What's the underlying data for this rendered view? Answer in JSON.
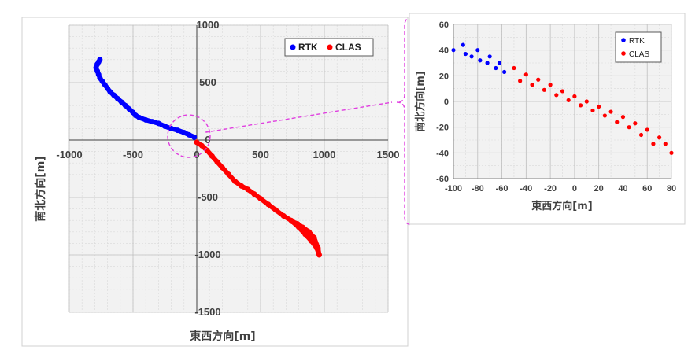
{
  "chart_data": [
    {
      "type": "scatter",
      "title": "",
      "xlabel": "東西方向[m]",
      "ylabel": "南北方向[m]",
      "xlim": [
        -1000,
        1500
      ],
      "ylim": [
        -1500,
        1000
      ],
      "xticks": [
        "-1000",
        "-500",
        "0",
        "500",
        "1000",
        "1500"
      ],
      "yticks": [
        "1000",
        "500",
        "0",
        "-500",
        "-1000",
        "-1500"
      ],
      "grid": true,
      "legend": "top-right",
      "series": [
        {
          "name": "RTK",
          "color": "#0000ff",
          "x": [
            -770,
            -760,
            -780,
            -790,
            -780,
            -770,
            -760,
            -740,
            -720,
            -700,
            -680,
            -650,
            -620,
            -590,
            -560,
            -530,
            -500,
            -480,
            -450,
            -400,
            -350,
            -300,
            -250,
            -200,
            -150,
            -100,
            -60,
            -20
          ],
          "y": [
            680,
            700,
            660,
            630,
            600,
            570,
            540,
            510,
            480,
            450,
            420,
            390,
            360,
            330,
            300,
            270,
            240,
            215,
            195,
            175,
            160,
            145,
            120,
            100,
            85,
            65,
            45,
            25
          ]
        },
        {
          "name": "CLAS",
          "color": "#ff0000",
          "x": [
            0,
            40,
            80,
            120,
            160,
            200,
            250,
            300,
            350,
            400,
            450,
            500,
            560,
            620,
            680,
            740,
            800,
            850,
            900,
            940,
            960,
            950,
            920,
            880,
            830,
            790,
            750,
            800,
            850,
            900,
            950
          ],
          "y": [
            -20,
            -50,
            -90,
            -140,
            -190,
            -240,
            -300,
            -360,
            -400,
            -430,
            -470,
            -510,
            -560,
            -610,
            -660,
            -700,
            -760,
            -820,
            -880,
            -940,
            -1000,
            -940,
            -850,
            -800,
            -760,
            -730,
            -710,
            -740,
            -800,
            -870,
            -950
          ]
        }
      ]
    },
    {
      "type": "scatter",
      "title": "",
      "xlabel": "東西方向[m]",
      "ylabel": "南北方向[m]",
      "xlim": [
        -100,
        80
      ],
      "ylim": [
        -60,
        60
      ],
      "xticks": [
        "-100",
        "-80",
        "-60",
        "-40",
        "-20",
        "0",
        "20",
        "40",
        "60",
        "80"
      ],
      "yticks": [
        "60",
        "40",
        "20",
        "0",
        "-20",
        "-40",
        "-60"
      ],
      "grid": true,
      "legend": "top-right",
      "series": [
        {
          "name": "RTK",
          "color": "#0000ff",
          "x": [
            -100,
            -92,
            -90,
            -85,
            -80,
            -78,
            -72,
            -70,
            -65,
            -62,
            -58
          ],
          "y": [
            40,
            44,
            37,
            35,
            40,
            32,
            30,
            35,
            26,
            30,
            23
          ]
        },
        {
          "name": "CLAS",
          "color": "#ff0000",
          "x": [
            -50,
            -45,
            -40,
            -35,
            -30,
            -25,
            -20,
            -15,
            -10,
            -5,
            0,
            5,
            10,
            15,
            20,
            25,
            30,
            35,
            40,
            45,
            50,
            55,
            60,
            65,
            70,
            75,
            80
          ],
          "y": [
            26,
            16,
            21,
            13,
            17,
            9,
            13,
            5,
            8,
            1,
            4,
            -3,
            0,
            -7,
            -4,
            -11,
            -8,
            -16,
            -12,
            -20,
            -17,
            -26,
            -22,
            -33,
            -28,
            -33,
            -40
          ]
        }
      ]
    }
  ],
  "colors": {
    "rtk": "#0000ff",
    "clas": "#ff0000",
    "zoom_callout": "#e040e0",
    "plot_bg": "#f2f2f2",
    "grid_major": "#bfbfbf",
    "grid_minor": "#d9d9d9"
  }
}
